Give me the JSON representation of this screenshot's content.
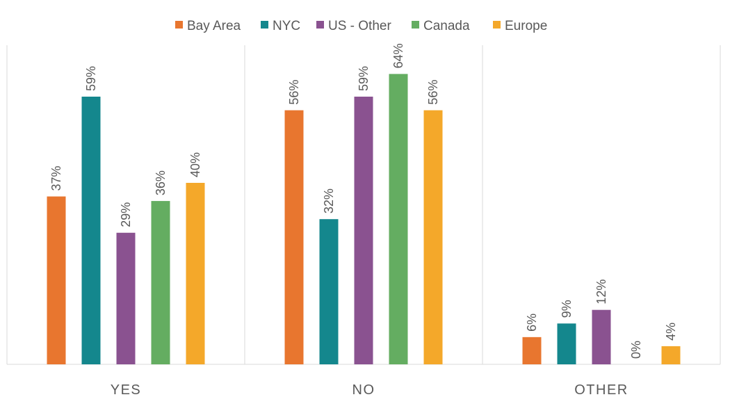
{
  "chart_data": {
    "type": "bar",
    "categories": [
      "YES",
      "NO",
      "OTHER"
    ],
    "series": [
      {
        "name": "Bay Area",
        "color": "#E8762F",
        "values": [
          37,
          56,
          6
        ]
      },
      {
        "name": "NYC",
        "color": "#14878D",
        "values": [
          59,
          32,
          9
        ]
      },
      {
        "name": "US - Other",
        "color": "#8A5290",
        "values": [
          29,
          59,
          12
        ]
      },
      {
        "name": "Canada",
        "color": "#64AD61",
        "values": [
          36,
          64,
          0
        ]
      },
      {
        "name": "Europe",
        "color": "#F4A82A",
        "values": [
          40,
          56,
          4
        ]
      }
    ],
    "value_format": "percent",
    "ylim": [
      0,
      70
    ],
    "grid": false,
    "legend": "top",
    "title": "",
    "xlabel": "",
    "ylabel": ""
  }
}
